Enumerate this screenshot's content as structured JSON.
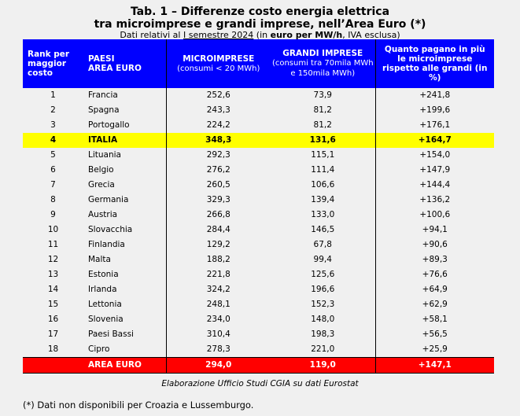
{
  "title_line1": "Tab. 1 – Differenze costo energia elettrica",
  "title_line2": "tra microimprese e grandi imprese, nell’Area Euro (*)",
  "subtitle": {
    "pre": "Dati relativi al ",
    "period": "I semestre 2024",
    "mid": " (in ",
    "unit": "euro per MW/h",
    "post": ", IVA esclusa)"
  },
  "headers": {
    "rank": "Rank per maggior costo",
    "country_1": "PAESI",
    "country_2": "AREA EURO",
    "micro": "MICROIMPRESE",
    "micro_sub": "(consumi < 20 MWh)",
    "grandi": "GRANDI IMPRESE",
    "grandi_sub": "(consumi tra 70mila MWh e 150mila MWh)",
    "diff": "Quanto pagano in più le microimprese rispetto alle grandi (in %)"
  },
  "rows": [
    {
      "rank": "1",
      "country": "Francia",
      "micro": "252,6",
      "grandi": "73,9",
      "diff": "+241,8"
    },
    {
      "rank": "2",
      "country": "Spagna",
      "micro": "243,3",
      "grandi": "81,2",
      "diff": "+199,6"
    },
    {
      "rank": "3",
      "country": "Portogallo",
      "micro": "224,2",
      "grandi": "81,2",
      "diff": "+176,1"
    },
    {
      "rank": "4",
      "country": "ITALIA",
      "micro": "348,3",
      "grandi": "131,6",
      "diff": "+164,7"
    },
    {
      "rank": "5",
      "country": "Lituania",
      "micro": "292,3",
      "grandi": "115,1",
      "diff": "+154,0"
    },
    {
      "rank": "6",
      "country": "Belgio",
      "micro": "276,2",
      "grandi": "111,4",
      "diff": "+147,9"
    },
    {
      "rank": "7",
      "country": "Grecia",
      "micro": "260,5",
      "grandi": "106,6",
      "diff": "+144,4"
    },
    {
      "rank": "8",
      "country": "Germania",
      "micro": "329,3",
      "grandi": "139,4",
      "diff": "+136,2"
    },
    {
      "rank": "9",
      "country": "Austria",
      "micro": "266,8",
      "grandi": "133,0",
      "diff": "+100,6"
    },
    {
      "rank": "10",
      "country": "Slovacchia",
      "micro": "284,4",
      "grandi": "146,5",
      "diff": "+94,1"
    },
    {
      "rank": "11",
      "country": "Finlandia",
      "micro": "129,2",
      "grandi": "67,8",
      "diff": "+90,6"
    },
    {
      "rank": "12",
      "country": "Malta",
      "micro": "188,2",
      "grandi": "99,4",
      "diff": "+89,3"
    },
    {
      "rank": "13",
      "country": "Estonia",
      "micro": "221,8",
      "grandi": "125,6",
      "diff": "+76,6"
    },
    {
      "rank": "14",
      "country": "Irlanda",
      "micro": "324,2",
      "grandi": "196,6",
      "diff": "+64,9"
    },
    {
      "rank": "15",
      "country": "Lettonia",
      "micro": "248,1",
      "grandi": "152,3",
      "diff": "+62,9"
    },
    {
      "rank": "16",
      "country": "Slovenia",
      "micro": "234,0",
      "grandi": "148,0",
      "diff": "+58,1"
    },
    {
      "rank": "17",
      "country": "Paesi Bassi",
      "micro": "310,4",
      "grandi": "198,3",
      "diff": "+56,5"
    },
    {
      "rank": "18",
      "country": "Cipro",
      "micro": "278,3",
      "grandi": "221,0",
      "diff": "+25,9"
    }
  ],
  "total": {
    "rank": "",
    "country": "AREA EURO",
    "micro": "294,0",
    "grandi": "119,0",
    "diff": "+147,1"
  },
  "source": "Elaborazione Ufficio Studi CGIA su dati Eurostat",
  "footnote": "(*) Dati non disponibili per Croazia e Lussemburgo.",
  "colors": {
    "header": "#0000ff",
    "highlight": "#ffff00",
    "total": "#ff0000"
  }
}
